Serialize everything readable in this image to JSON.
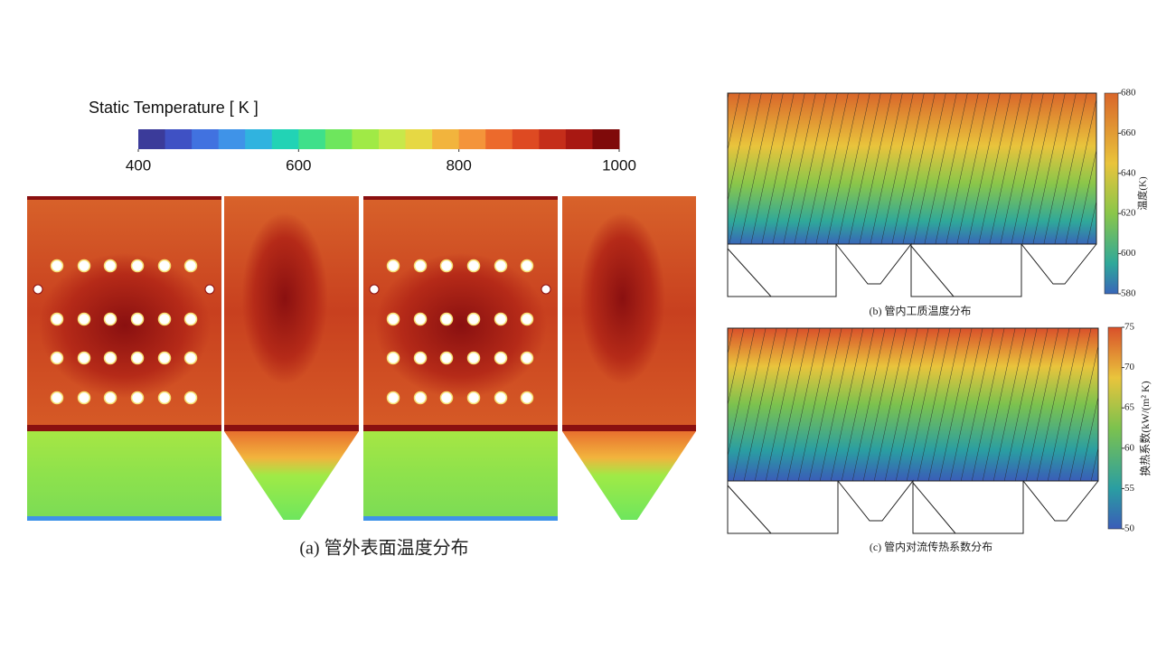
{
  "panels": {
    "a": {
      "colorbar": {
        "title": "Static Temperature [ K ]",
        "lim": [
          400,
          1000
        ],
        "ticks": [
          400,
          600,
          800,
          1000
        ],
        "colors": [
          "#3b3b9a",
          "#3f51c4",
          "#4172e0",
          "#3f93e8",
          "#30b3df",
          "#22d3b5",
          "#3fe08a",
          "#6ee65d",
          "#a0ea46",
          "#c8e84a",
          "#e6d844",
          "#f2b43d",
          "#f4943a",
          "#ec6a2c",
          "#de4a22",
          "#c52e1a",
          "#a81812",
          "#7f0a0a"
        ]
      },
      "caption": "(a) 管外表面温度分布"
    },
    "b": {
      "colorbar": {
        "label": "温度(K)",
        "lim": [
          580,
          680
        ],
        "ticks": [
          580,
          600,
          620,
          640,
          660,
          680
        ]
      },
      "caption": "(b) 管内工质温度分布"
    },
    "c": {
      "colorbar": {
        "label": "换热系数(kW/(m² K)",
        "lim": [
          50,
          75
        ],
        "ticks": [
          50,
          55,
          60,
          65,
          70,
          75
        ]
      },
      "caption": "(c) 管内对流传热系数分布"
    }
  }
}
